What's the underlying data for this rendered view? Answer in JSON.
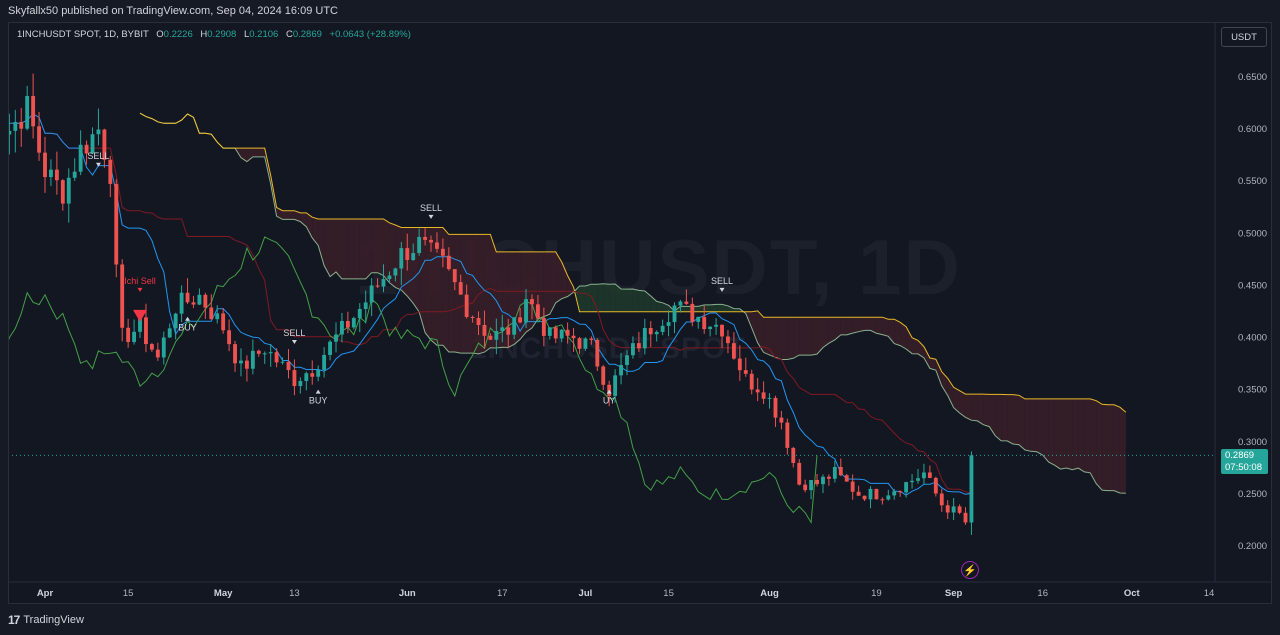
{
  "header": {
    "publisher": "Skyfallx50 published on TradingView.com, Sep 04, 2024 16:09 UTC"
  },
  "legend": {
    "symbol": "1INCHUSDT SPOT, 1D, BYBIT",
    "open_label": "O",
    "open": "0.2226",
    "high_label": "H",
    "high": "0.2908",
    "low_label": "L",
    "low": "0.2106",
    "close_label": "C",
    "close": "0.2869",
    "change": "+0.0643 (+28.89%)"
  },
  "watermark": {
    "main": "1INCHUSDT, 1D",
    "sub": "1INCHUSDT SPOT"
  },
  "price_scale": {
    "currency": "USDT",
    "last_price": "0.2869",
    "countdown": "07:50:08"
  },
  "footer": {
    "brand": "TradingView",
    "brand_icon": "tv-logo-icon"
  },
  "colors": {
    "up": "#26a69a",
    "down": "#ef5350",
    "background": "#131722",
    "tenkan": "#2196f3",
    "kijun": "#801922",
    "lagging": "#43a047",
    "span_a": "#a5d6a7",
    "span_b": "#ffca28",
    "cloud_bull": "#1e3a2a",
    "cloud_bear": "#3a1f28"
  },
  "chart_data": {
    "type": "candlestick",
    "title": "1INCHUSDT SPOT, 1D, BYBIT",
    "ylim": [
      0.18,
      0.68
    ],
    "y_ticks": [
      "0.6500",
      "0.6000",
      "0.5500",
      "0.5000",
      "0.4500",
      "0.4000",
      "0.3500",
      "0.3000",
      "0.2500",
      "0.2000"
    ],
    "x_tick_labels": [
      {
        "label": "Apr",
        "date": "2024-04-01"
      },
      {
        "label": "15",
        "date": "2024-04-15"
      },
      {
        "label": "May",
        "date": "2024-05-01"
      },
      {
        "label": "13",
        "date": "2024-05-13"
      },
      {
        "label": "Jun",
        "date": "2024-06-01"
      },
      {
        "label": "17",
        "date": "2024-06-17"
      },
      {
        "label": "Jul",
        "date": "2024-07-01"
      },
      {
        "label": "15",
        "date": "2024-07-15"
      },
      {
        "label": "Aug",
        "date": "2024-08-01"
      },
      {
        "label": "19",
        "date": "2024-08-19"
      },
      {
        "label": "Sep",
        "date": "2024-09-01"
      },
      {
        "label": "16",
        "date": "2024-09-16"
      },
      {
        "label": "Oct",
        "date": "2024-10-01"
      },
      {
        "label": "14",
        "date": "2024-10-14"
      }
    ],
    "close_anchors": [
      [
        "2024-03-22",
        0.61
      ],
      [
        "2024-03-26",
        0.6
      ],
      [
        "2024-03-29",
        0.62
      ],
      [
        "2024-04-01",
        0.56
      ],
      [
        "2024-04-04",
        0.54
      ],
      [
        "2024-04-07",
        0.58
      ],
      [
        "2024-04-10",
        0.6
      ],
      [
        "2024-04-12",
        0.56
      ],
      [
        "2024-04-13",
        0.46
      ],
      [
        "2024-04-14",
        0.4
      ],
      [
        "2024-04-17",
        0.41
      ],
      [
        "2024-04-20",
        0.38
      ],
      [
        "2024-04-23",
        0.43
      ],
      [
        "2024-04-27",
        0.44
      ],
      [
        "2024-05-01",
        0.41
      ],
      [
        "2024-05-04",
        0.37
      ],
      [
        "2024-05-08",
        0.39
      ],
      [
        "2024-05-13",
        0.36
      ],
      [
        "2024-05-16",
        0.37
      ],
      [
        "2024-05-20",
        0.4
      ],
      [
        "2024-05-23",
        0.42
      ],
      [
        "2024-05-27",
        0.45
      ],
      [
        "2024-05-31",
        0.48
      ],
      [
        "2024-06-03",
        0.49
      ],
      [
        "2024-06-07",
        0.47
      ],
      [
        "2024-06-11",
        0.43
      ],
      [
        "2024-06-15",
        0.4
      ],
      [
        "2024-06-19",
        0.41
      ],
      [
        "2024-06-21",
        0.44
      ],
      [
        "2024-06-25",
        0.4
      ],
      [
        "2024-06-29",
        0.4
      ],
      [
        "2024-07-02",
        0.39
      ],
      [
        "2024-07-05",
        0.35
      ],
      [
        "2024-07-08",
        0.38
      ],
      [
        "2024-07-12",
        0.41
      ],
      [
        "2024-07-16",
        0.43
      ],
      [
        "2024-07-20",
        0.42
      ],
      [
        "2024-07-24",
        0.41
      ],
      [
        "2024-07-28",
        0.36
      ],
      [
        "2024-07-31",
        0.35
      ],
      [
        "2024-08-03",
        0.32
      ],
      [
        "2024-08-06",
        0.26
      ],
      [
        "2024-08-09",
        0.26
      ],
      [
        "2024-08-12",
        0.27
      ],
      [
        "2024-08-16",
        0.25
      ],
      [
        "2024-08-20",
        0.25
      ],
      [
        "2024-08-24",
        0.26
      ],
      [
        "2024-08-27",
        0.27
      ],
      [
        "2024-08-30",
        0.24
      ],
      [
        "2024-09-02",
        0.23
      ],
      [
        "2024-09-03",
        0.2226
      ]
    ],
    "last_candle": {
      "date": "2024-09-04",
      "open": 0.2226,
      "high": 0.2908,
      "low": 0.2106,
      "close": 0.2869
    },
    "ichimoku": {
      "tenkan_period": 9,
      "kijun_period": 26,
      "senkou_b_period": 52,
      "displacement": 26
    },
    "signals": [
      {
        "label": "SELL",
        "date": "2024-04-10",
        "price": 0.56,
        "position": "above"
      },
      {
        "label": "Ichi Sell",
        "date": "2024-04-17",
        "price": 0.44,
        "position": "above",
        "color": "#f23645"
      },
      {
        "label": "BUY",
        "date": "2024-04-25",
        "price": 0.42,
        "position": "below"
      },
      {
        "label": "SELL",
        "date": "2024-05-13",
        "price": 0.39,
        "position": "above"
      },
      {
        "label": "BUY",
        "date": "2024-05-17",
        "price": 0.35,
        "position": "below"
      },
      {
        "label": "SELL",
        "date": "2024-06-05",
        "price": 0.51,
        "position": "above"
      },
      {
        "label": "UY",
        "date": "2024-07-05",
        "price": 0.35,
        "position": "below"
      },
      {
        "label": "SELL",
        "date": "2024-07-24",
        "price": 0.44,
        "position": "above"
      }
    ]
  }
}
